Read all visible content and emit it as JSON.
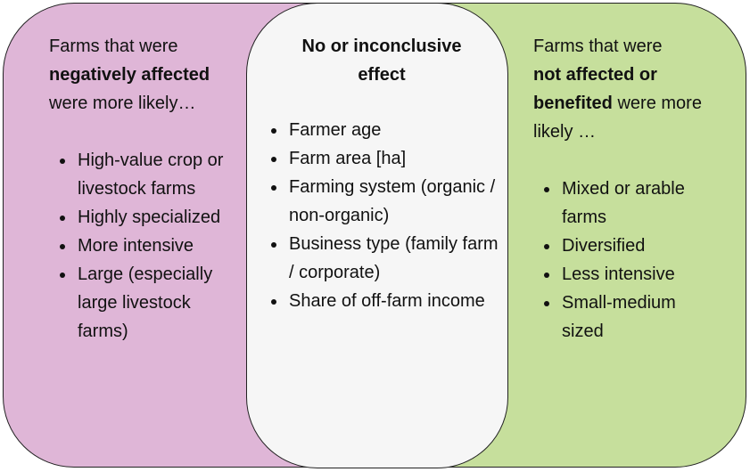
{
  "panels": [
    {
      "intro": [
        "Farms that were",
        "negatively affected",
        "were more likely…"
      ],
      "items": [
        "High-value crop or livestock farms",
        "Highly specialized",
        "More intensive",
        "Large (especially large livestock farms)"
      ]
    },
    {
      "title": "No or inconclusive effect",
      "items": [
        "Farmer age",
        "Farm area [ha]",
        "Farming system (organic / non-organic)",
        "Business type (family farm / corporate)",
        "Share of off-farm income"
      ]
    },
    {
      "intro": [
        "Farms that were",
        "not affected or benefited",
        "were more likely …"
      ],
      "items": [
        "Mixed or arable farms",
        "Diversified",
        "Less intensive",
        "Small-medium sized"
      ]
    }
  ]
}
